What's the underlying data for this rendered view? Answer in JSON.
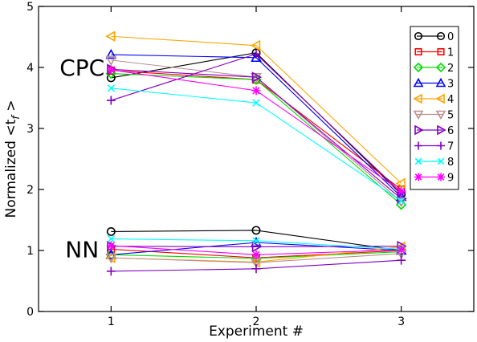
{
  "chart_data": {
    "type": "line",
    "xlabel": "Experiment #",
    "ylabel_main": "Normalized <t",
    "ylabel_sub": "f",
    "ylabel_end": " >",
    "x": [
      1,
      2,
      3
    ],
    "xlim": [
      0.5,
      3.5
    ],
    "ylim": [
      0,
      5
    ],
    "xticks": [
      "1",
      "2",
      "3"
    ],
    "yticks": [
      "0",
      "1",
      "2",
      "3",
      "4",
      "5"
    ],
    "grid": false,
    "legend_position": "top-right",
    "annotations": [
      {
        "text": "CPC",
        "x": 0.8,
        "y": 4.0
      },
      {
        "text": "NN",
        "x": 0.8,
        "y": 1.02
      }
    ],
    "groups": [
      "CPC",
      "NN"
    ],
    "series": [
      {
        "name": "0",
        "color": "#000000",
        "marker": "circle",
        "CPC": [
          3.83,
          4.24,
          1.92
        ],
        "NN": [
          1.31,
          1.33,
          1.0
        ]
      },
      {
        "name": "1",
        "color": "#ff0000",
        "marker": "square",
        "CPC": [
          3.95,
          3.8,
          2.0
        ],
        "NN": [
          1.02,
          0.88,
          1.0
        ]
      },
      {
        "name": "2",
        "color": "#00dd00",
        "marker": "diamond",
        "CPC": [
          3.9,
          3.8,
          1.75
        ],
        "NN": [
          0.93,
          0.87,
          0.98
        ]
      },
      {
        "name": "3",
        "color": "#0000ff",
        "marker": "triangle-up",
        "CPC": [
          4.21,
          4.16,
          1.88
        ],
        "NN": [
          0.93,
          1.13,
          1.0
        ]
      },
      {
        "name": "4",
        "color": "#ffa500",
        "marker": "triangle-left",
        "CPC": [
          4.51,
          4.36,
          2.1
        ],
        "NN": [
          0.88,
          0.81,
          1.06
        ]
      },
      {
        "name": "5",
        "color": "#bc8f8f",
        "marker": "triangle-down",
        "CPC": [
          4.12,
          3.84,
          1.8
        ],
        "NN": [
          0.88,
          0.8,
          0.95
        ]
      },
      {
        "name": "6",
        "color": "#8000c0",
        "marker": "triangle-right",
        "CPC": [
          3.97,
          3.84,
          1.85
        ],
        "NN": [
          1.07,
          1.06,
          1.07
        ]
      },
      {
        "name": "7",
        "color": "#8000c0",
        "marker": "plus",
        "CPC": [
          3.46,
          4.22,
          1.95
        ],
        "NN": [
          0.66,
          0.7,
          0.84
        ]
      },
      {
        "name": "8",
        "color": "#00ffff",
        "marker": "x",
        "CPC": [
          3.66,
          3.42,
          1.81
        ],
        "NN": [
          1.19,
          1.16,
          1.02
        ]
      },
      {
        "name": "9",
        "color": "#ff00ff",
        "marker": "asterisk",
        "CPC": [
          3.96,
          3.62,
          1.97
        ],
        "NN": [
          1.08,
          0.93,
          1.01
        ]
      }
    ]
  }
}
